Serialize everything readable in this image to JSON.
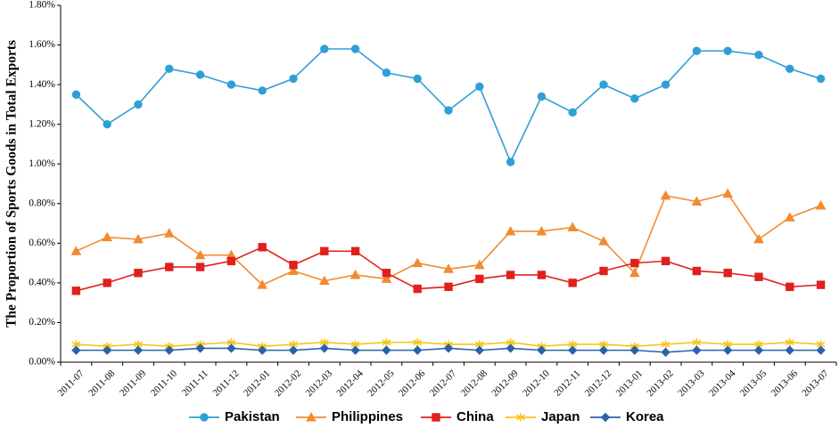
{
  "chart_data": {
    "type": "line",
    "ylabel": "The Proportion of Sports Goods in Total Exports",
    "xlabel": "",
    "ylim": [
      0,
      0.018
    ],
    "y_ticks": [
      {
        "value": 0.0,
        "label": "0.00%"
      },
      {
        "value": 0.002,
        "label": "0.20%"
      },
      {
        "value": 0.004,
        "label": "0.40%"
      },
      {
        "value": 0.006,
        "label": "0.60%"
      },
      {
        "value": 0.008,
        "label": "0.80%"
      },
      {
        "value": 0.01,
        "label": "1.00%"
      },
      {
        "value": 0.012,
        "label": "1.20%"
      },
      {
        "value": 0.014,
        "label": "1.40%"
      },
      {
        "value": 0.016,
        "label": "1.60%"
      },
      {
        "value": 0.018,
        "label": "1.80%"
      }
    ],
    "categories": [
      "2011-07",
      "2011-08",
      "2011-09",
      "2011-10",
      "2011-11",
      "2011-12",
      "2012-01",
      "2012-02",
      "2012-03",
      "2012-04",
      "2012-05",
      "2012-06",
      "2012-07",
      "2012-08",
      "2012-09",
      "2012-10",
      "2012-11",
      "2012-12",
      "2013-01",
      "2013-02",
      "2013-03",
      "2013-04",
      "2013-05",
      "2013-06",
      "2013-07"
    ],
    "grid": false,
    "legend_position": "bottom",
    "series": [
      {
        "name": "Pakistan",
        "color": "#2E9FD8",
        "marker": "circle",
        "values": [
          0.0135,
          0.012,
          0.013,
          0.0148,
          0.0145,
          0.014,
          0.0137,
          0.0143,
          0.0158,
          0.0158,
          0.0146,
          0.0143,
          0.0127,
          0.0139,
          0.0101,
          0.0134,
          0.0126,
          0.014,
          0.0133,
          0.014,
          0.0157,
          0.0157,
          0.0155,
          0.0148,
          0.0143
        ]
      },
      {
        "name": "Philippines",
        "color": "#F28B30",
        "marker": "triangle",
        "values": [
          0.0056,
          0.0063,
          0.0062,
          0.0065,
          0.0054,
          0.0054,
          0.0039,
          0.0046,
          0.0041,
          0.0044,
          0.0042,
          0.005,
          0.0047,
          0.0049,
          0.0066,
          0.0066,
          0.0068,
          0.0061,
          0.0045,
          0.0084,
          0.0081,
          0.0085,
          0.0062,
          0.0073,
          0.0079
        ]
      },
      {
        "name": "China",
        "color": "#E0201C",
        "marker": "square",
        "values": [
          0.0036,
          0.004,
          0.0045,
          0.0048,
          0.0048,
          0.0051,
          0.0058,
          0.0049,
          0.0056,
          0.0056,
          0.0045,
          0.0037,
          0.0038,
          0.0042,
          0.0044,
          0.0044,
          0.004,
          0.0046,
          0.005,
          0.0051,
          0.0046,
          0.0045,
          0.0043,
          0.0038,
          0.0039
        ]
      },
      {
        "name": "Japan",
        "color": "#F5C518",
        "marker": "star",
        "values": [
          0.0009,
          0.0008,
          0.0009,
          0.0008,
          0.0009,
          0.001,
          0.0008,
          0.0009,
          0.001,
          0.0009,
          0.001,
          0.001,
          0.0009,
          0.0009,
          0.001,
          0.0008,
          0.0009,
          0.0009,
          0.0008,
          0.0009,
          0.001,
          0.0009,
          0.0009,
          0.001,
          0.0009
        ]
      },
      {
        "name": "Korea",
        "color": "#2A62A8",
        "marker": "diamond",
        "values": [
          0.0006,
          0.0006,
          0.0006,
          0.0006,
          0.0007,
          0.0007,
          0.0006,
          0.0006,
          0.0007,
          0.0006,
          0.0006,
          0.0006,
          0.0007,
          0.0006,
          0.0007,
          0.0006,
          0.0006,
          0.0006,
          0.0006,
          0.0005,
          0.0006,
          0.0006,
          0.0006,
          0.0006,
          0.0006
        ]
      }
    ]
  }
}
